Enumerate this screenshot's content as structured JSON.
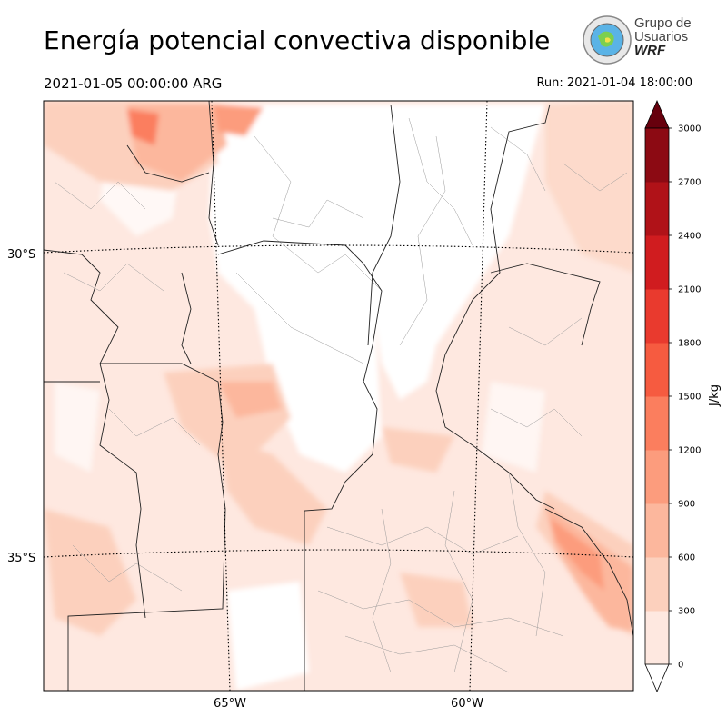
{
  "title": "Energía potencial convectiva disponible",
  "valid_time": "2021-01-05 00:00:00 ARG",
  "run_time": "Run: 2021-01-04 18:00:00",
  "logo": {
    "line1": "Grupo de",
    "line2": "Usuarios",
    "line3": "WRF",
    "icon": "globe-logo-icon"
  },
  "map": {
    "lat_labels": [
      "30°S",
      "35°S"
    ],
    "lon_labels": [
      "65°W",
      "60°W"
    ],
    "border_color": "#222222",
    "department_color": "#999999",
    "gridline_style": "dotted"
  },
  "colorbar": {
    "unit": "J/kg",
    "ticks": [
      "0",
      "300",
      "600",
      "900",
      "1200",
      "1500",
      "1800",
      "2100",
      "2400",
      "2700",
      "3000"
    ],
    "colors": [
      "#fee8e0",
      "#fcd0bd",
      "#fcb79d",
      "#fc9c7d",
      "#fb7e5e",
      "#f65b40",
      "#e93a2e",
      "#d01c1f",
      "#b01218",
      "#8c0a13"
    ],
    "extend_color": "#67000d"
  }
}
